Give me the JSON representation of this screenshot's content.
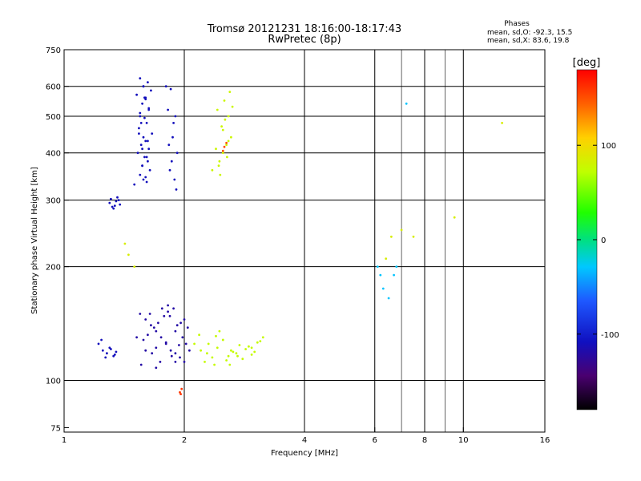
{
  "chart_data": {
    "type": "scatter",
    "title": "Tromsø 20121231 18:16:00-18:17:43",
    "subtitle": "RwPretec (8p)",
    "stats_title": "Phases",
    "stats_line1": "mean, sd,O: -92.3, 15.5",
    "stats_line2": "mean, sd,X: 83.6, 19.8",
    "xlabel": "Frequency [MHz]",
    "ylabel": "Stationary phase Virtual Height [km]",
    "xscale": "log",
    "yscale": "log",
    "xlim": [
      1,
      16
    ],
    "ylim": [
      73,
      750
    ],
    "xticks": [
      1,
      2,
      4,
      6,
      8,
      10,
      16
    ],
    "xtick_labels": [
      "1",
      "2",
      "4",
      "6",
      "8",
      "10",
      "16"
    ],
    "xgrid": [
      2,
      4,
      6,
      8,
      10
    ],
    "xminor": [
      7,
      9
    ],
    "yticks": [
      75,
      100,
      200,
      300,
      400,
      500,
      600,
      750
    ],
    "ytick_labels": [
      "75",
      "100",
      "200",
      "300",
      "400",
      "500",
      "600",
      "750"
    ],
    "ygrid": [
      100,
      200,
      300,
      400,
      500,
      600
    ],
    "colorbar": {
      "label": "[deg]",
      "range": [
        -180,
        180
      ],
      "ticks": [
        100,
        0,
        -100
      ],
      "tick_labels": [
        "100",
        "0",
        "-100"
      ]
    },
    "series": [
      {
        "x": [
          1.55,
          1.62,
          1.58,
          1.65,
          1.52,
          1.6,
          1.57,
          1.63,
          1.55,
          1.59,
          1.61,
          1.54,
          1.66,
          1.58,
          1.6,
          1.56,
          1.63,
          1.53,
          1.59,
          1.62,
          1.57,
          1.64,
          1.55,
          1.6,
          1.58,
          1.61,
          1.5,
          1.56,
          1.63,
          1.59,
          1.54,
          1.57,
          1.61,
          1.58,
          1.6,
          1.55,
          1.62,
          1.57
        ],
        "y": [
          630,
          615,
          600,
          585,
          570,
          555,
          540,
          525,
          510,
          495,
          480,
          465,
          450,
          440,
          430,
          420,
          410,
          400,
          390,
          380,
          370,
          360,
          350,
          345,
          340,
          335,
          330,
          480,
          520,
          560,
          450,
          410,
          390,
          600,
          560,
          500,
          430,
          370
        ],
        "c": -110
      },
      {
        "x": [
          1.8,
          1.85,
          1.82,
          1.9,
          1.88,
          1.87,
          1.83,
          1.92,
          1.86,
          1.84,
          1.89,
          1.91
        ],
        "y": [
          600,
          590,
          520,
          500,
          480,
          440,
          420,
          400,
          380,
          360,
          340,
          320
        ],
        "c": -110
      },
      {
        "x": [
          1.3,
          1.34,
          1.37,
          1.33,
          1.36,
          1.38,
          1.32,
          1.35,
          1.31
        ],
        "y": [
          295,
          290,
          300,
          285,
          305,
          292,
          288,
          298,
          302
        ],
        "c": -110
      },
      {
        "x": [
          1.55,
          1.6,
          1.65,
          1.7,
          1.75,
          1.8,
          1.85,
          1.9,
          1.95,
          2.0,
          1.58,
          1.62,
          1.68,
          1.72,
          1.78,
          1.82,
          1.88,
          1.92,
          1.98,
          2.02,
          1.6,
          1.7,
          1.8,
          1.9,
          2.0,
          1.52,
          1.66,
          1.74,
          1.86,
          1.94,
          2.04,
          1.64,
          1.76,
          1.84,
          1.96,
          1.56,
          1.7,
          1.9,
          2.06,
          1.82
        ],
        "y": [
          150,
          145,
          140,
          135,
          130,
          125,
          120,
          118,
          115,
          112,
          128,
          132,
          138,
          142,
          148,
          152,
          155,
          140,
          130,
          125,
          120,
          122,
          126,
          135,
          145,
          130,
          118,
          112,
          116,
          124,
          138,
          150,
          155,
          148,
          142,
          110,
          108,
          112,
          120,
          158
        ],
        "c": -120
      },
      {
        "x": [
          1.22,
          1.25,
          1.28,
          1.3,
          1.33,
          1.35,
          1.24,
          1.27,
          1.31,
          1.34
        ],
        "y": [
          125,
          120,
          118,
          122,
          116,
          119,
          128,
          115,
          121,
          117
        ],
        "c": -110
      },
      {
        "x": [
          2.12,
          2.2,
          2.28,
          2.35,
          2.42,
          2.5,
          2.58,
          2.65,
          2.75,
          2.85,
          2.95,
          3.05,
          3.15,
          2.25,
          2.38,
          2.55,
          2.7,
          2.9,
          3.1,
          2.18,
          2.45,
          2.62,
          2.8,
          3.0,
          2.3,
          2.5,
          2.72,
          2.95,
          2.4,
          2.6
        ],
        "y": [
          125,
          120,
          118,
          115,
          122,
          128,
          116,
          119,
          124,
          121,
          117,
          126,
          130,
          112,
          110,
          113,
          118,
          123,
          127,
          132,
          135,
          120,
          114,
          119,
          125,
          128,
          116,
          122,
          131,
          110
        ],
        "c": 75
      },
      {
        "x": [
          2.35,
          2.45,
          2.5,
          2.55,
          2.62,
          2.48,
          2.58,
          2.42,
          2.52,
          2.6,
          2.46,
          2.56,
          2.4,
          2.5,
          2.64,
          2.53,
          2.44,
          2.58
        ],
        "y": [
          360,
          380,
          400,
          420,
          440,
          470,
          500,
          520,
          550,
          580,
          350,
          390,
          410,
          460,
          530,
          490,
          370,
          430
        ],
        "c": 78
      },
      {
        "x": [
          2.5,
          2.52,
          2.55
        ],
        "y": [
          405,
          415,
          425
        ],
        "c": 150
      },
      {
        "x": [
          1.95,
          1.97,
          1.96
        ],
        "y": [
          93,
          95,
          92
        ],
        "c": 160
      },
      {
        "x": [
          6.1,
          6.2,
          6.3,
          6.5,
          6.7,
          6.8,
          7.2
        ],
        "y": [
          200,
          190,
          175,
          165,
          190,
          200,
          540
        ],
        "c": -30
      },
      {
        "x": [
          6.4,
          6.6,
          7.0,
          7.5,
          9.5,
          12.5,
          1.42,
          1.45,
          1.5
        ],
        "y": [
          210,
          240,
          250,
          240,
          270,
          480,
          230,
          215,
          200
        ],
        "c": 85
      }
    ]
  }
}
